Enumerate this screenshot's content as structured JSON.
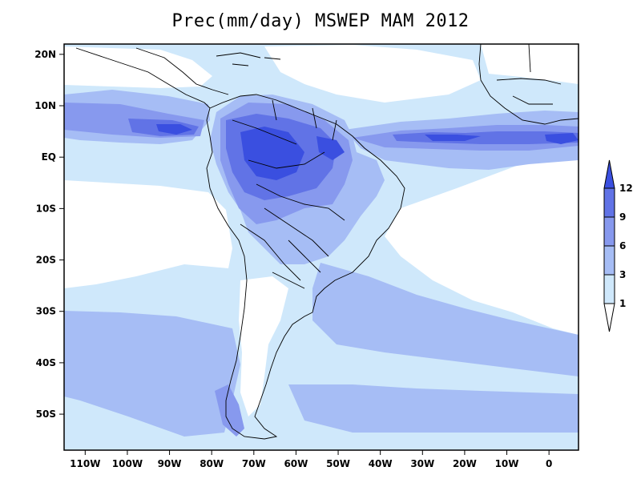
{
  "title": "Prec(mm/day) MSWEP MAM 2012",
  "map": {
    "lon_range": [
      -115,
      7
    ],
    "lat_range": [
      -57,
      22
    ],
    "lon_ticks": [
      {
        "lon": -110,
        "label": "110W"
      },
      {
        "lon": -100,
        "label": "100W"
      },
      {
        "lon": -90,
        "label": "90W"
      },
      {
        "lon": -80,
        "label": "80W"
      },
      {
        "lon": -70,
        "label": "70W"
      },
      {
        "lon": -60,
        "label": "60W"
      },
      {
        "lon": -50,
        "label": "50W"
      },
      {
        "lon": -40,
        "label": "40W"
      },
      {
        "lon": -30,
        "label": "30W"
      },
      {
        "lon": -20,
        "label": "20W"
      },
      {
        "lon": -10,
        "label": "10W"
      },
      {
        "lon": 0,
        "label": "0"
      }
    ],
    "lat_ticks": [
      {
        "lat": 20,
        "label": "20N"
      },
      {
        "lat": 10,
        "label": "10N"
      },
      {
        "lat": 0,
        "label": "EQ"
      },
      {
        "lat": -10,
        "label": "10S"
      },
      {
        "lat": -20,
        "label": "20S"
      },
      {
        "lat": -30,
        "label": "30S"
      },
      {
        "lat": -40,
        "label": "40S"
      },
      {
        "lat": -50,
        "label": "50S"
      }
    ],
    "colors": {
      "c1": "#cfe8fb",
      "c3": "#a6bdf5",
      "c6": "#8799ee",
      "c9": "#6173e6",
      "c12": "#3a4fe0",
      "land": "#ffffff",
      "border": "#000000"
    }
  },
  "colorbar": {
    "levels": [
      "1",
      "3",
      "6",
      "9",
      "12"
    ],
    "colors": [
      "#ffffff",
      "#cfe8fb",
      "#a6bdf5",
      "#8799ee",
      "#6173e6",
      "#3a4fe0"
    ]
  }
}
